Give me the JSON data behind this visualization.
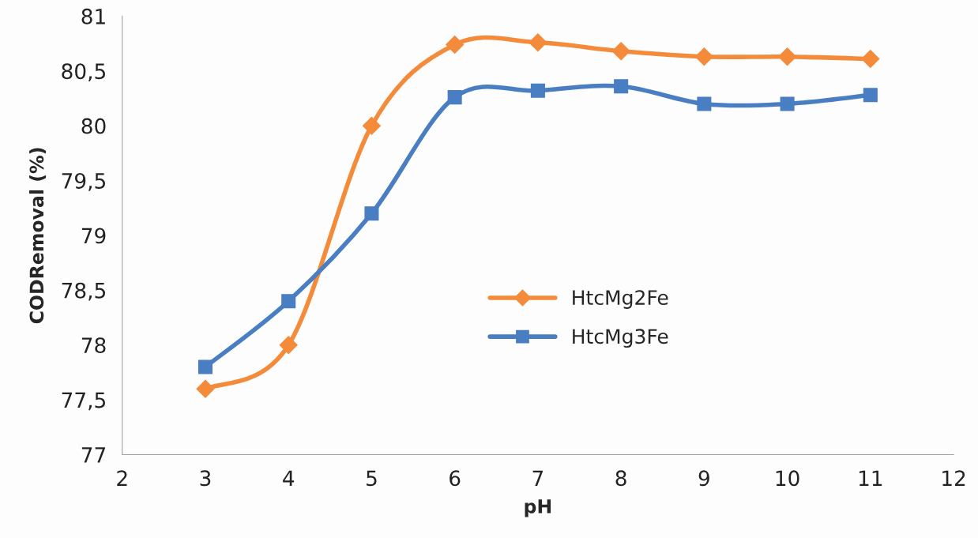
{
  "chart_data": {
    "type": "line",
    "xlabel": "pH",
    "ylabel": "CODRemoval (%)",
    "x": [
      3,
      4,
      5,
      6,
      7,
      8,
      9,
      10,
      11
    ],
    "series": [
      {
        "name": "HtcMg2Fe",
        "color": "#f38b3a",
        "marker": "diamond",
        "values": [
          77.6,
          78.0,
          80.0,
          80.74,
          80.76,
          80.68,
          80.63,
          80.63,
          80.61
        ]
      },
      {
        "name": "HtcMg3Fe",
        "color": "#4a7ec2",
        "marker": "square",
        "values": [
          77.8,
          78.4,
          79.2,
          80.26,
          80.32,
          80.36,
          80.2,
          80.2,
          80.28
        ]
      }
    ],
    "xlim": [
      2,
      12
    ],
    "xticks": [
      2,
      3,
      4,
      5,
      6,
      7,
      8,
      9,
      10,
      11,
      12
    ],
    "ylim": [
      77,
      81
    ],
    "yticks": [
      77,
      {
        "value": 77.5,
        "label": "77,5"
      },
      78,
      {
        "value": 78.5,
        "label": "78,5"
      },
      79,
      {
        "value": 79.5,
        "label": "79,5"
      },
      80,
      {
        "value": 80.5,
        "label": "80,5"
      },
      81
    ],
    "grid": false,
    "legend": "center",
    "line_style": "solid"
  }
}
